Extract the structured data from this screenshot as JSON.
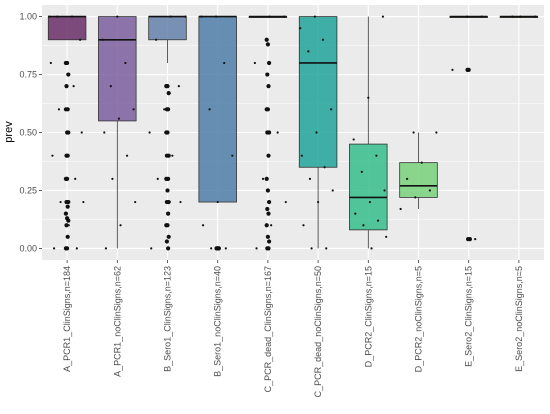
{
  "chart_data": {
    "type": "box",
    "title": "",
    "xlabel": "",
    "ylabel": "prev",
    "ylim": [
      -0.05,
      1.05
    ],
    "yticks": [
      "0.00",
      "0.25",
      "0.50",
      "0.75",
      "1.00"
    ],
    "yticks_values": [
      0,
      0.25,
      0.5,
      0.75,
      1
    ],
    "grid": true,
    "categories": [
      "A_PCR1_ClinSigns,n=184",
      "A_PCR1_noClinSigns,n=62",
      "B_Sero1_ClinSigns,n=123",
      "B_Sero1_noClinSigns,n=40",
      "C_PCR_dead_ClinSigns,n=167",
      "C_PCR_dead_noClinSigns,n=50",
      "D_PCR2_ClinSigns,n=15",
      "D_PCR2_noClinSigns,n=5",
      "E_Sero2_ClinSigns,n=15",
      "E_Sero2_noClinSigns,n=5"
    ],
    "boxes": [
      {
        "min": 0.9,
        "q1": 0.9,
        "median": 1.0,
        "q3": 1.0,
        "max": 1.0,
        "color": "#6a2f67",
        "outliers": [
          0.8,
          0.8,
          0.75,
          0.7,
          0.6,
          0.6,
          0.5,
          0.5,
          0.4,
          0.4,
          0.3,
          0.3,
          0.2,
          0.2,
          0.18,
          0.15,
          0.13,
          0.12,
          0.1,
          0.05,
          0.0,
          0.0
        ]
      },
      {
        "min": 0.0,
        "q1": 0.55,
        "median": 0.9,
        "q3": 1.0,
        "max": 1.0,
        "color": "#7b5fa0",
        "outliers": []
      },
      {
        "min": 0.8,
        "q1": 0.9,
        "median": 1.0,
        "q3": 1.0,
        "max": 1.0,
        "color": "#6580ab",
        "outliers": [
          0.7,
          0.7,
          0.67,
          0.6,
          0.6,
          0.5,
          0.5,
          0.4,
          0.4,
          0.3,
          0.3,
          0.25,
          0.2,
          0.2,
          0.15,
          0.1,
          0.1,
          0.05,
          0.03,
          0.0
        ]
      },
      {
        "min": 0.2,
        "q1": 0.2,
        "median": 1.0,
        "q3": 1.0,
        "max": 1.0,
        "color": "#4d7ea8",
        "outliers": [
          0.0,
          0.0,
          0.0,
          0.0,
          0.0
        ]
      },
      {
        "min": 1.0,
        "q1": 1.0,
        "median": 1.0,
        "q3": 1.0,
        "max": 1.0,
        "color": "#3b8f9b",
        "outliers": [
          0.9,
          0.88,
          0.8,
          0.75,
          0.7,
          0.6,
          0.6,
          0.5,
          0.5,
          0.4,
          0.3,
          0.25,
          0.2,
          0.17,
          0.15,
          0.1,
          0.05,
          0.03,
          0.0,
          0.0
        ]
      },
      {
        "min": 0.0,
        "q1": 0.35,
        "median": 0.8,
        "q3": 1.0,
        "max": 1.0,
        "color": "#21a39a",
        "outliers": []
      },
      {
        "min": 0.0,
        "q1": 0.08,
        "median": 0.22,
        "q3": 0.45,
        "max": 1.0,
        "color": "#36bd8c",
        "outliers": []
      },
      {
        "min": 0.17,
        "q1": 0.22,
        "median": 0.27,
        "q3": 0.37,
        "max": 0.5,
        "color": "#77d17a",
        "outliers": []
      },
      {
        "min": 1.0,
        "q1": 1.0,
        "median": 1.0,
        "q3": 1.0,
        "max": 1.0,
        "color": "#c4e05a",
        "outliers": [
          0.77,
          0.77,
          0.04,
          0.04
        ]
      },
      {
        "min": 1.0,
        "q1": 1.0,
        "median": 1.0,
        "q3": 1.0,
        "max": 1.0,
        "color": "#e8e43c",
        "outliers": []
      }
    ],
    "points": [
      [
        1.0,
        1.0,
        1.0,
        0.9,
        0.8,
        0.8,
        0.7,
        0.6,
        0.5,
        0.4,
        0.4,
        0.3,
        0.2,
        0.2,
        0.1,
        0.0,
        0.0
      ],
      [
        1.0,
        0.9,
        0.8,
        0.7,
        0.6,
        0.56,
        0.5,
        0.4,
        0.3,
        0.2,
        0.1,
        0.0
      ],
      [
        1.0,
        1.0,
        0.9,
        0.7,
        0.6,
        0.5,
        0.4,
        0.3,
        0.2,
        0.1,
        0.0
      ],
      [
        1.0,
        1.0,
        0.8,
        0.6,
        0.4,
        0.2,
        0.1,
        0.0,
        0.0
      ],
      [
        1.0,
        1.0,
        0.8,
        0.5,
        0.3,
        0.2,
        0.1,
        0.0
      ],
      [
        1.0,
        0.95,
        0.9,
        0.85,
        0.6,
        0.5,
        0.4,
        0.35,
        0.3,
        0.25,
        0.2,
        0.1,
        0.0,
        0.0
      ],
      [
        1.0,
        0.65,
        0.47,
        0.4,
        0.33,
        0.25,
        0.2,
        0.15,
        0.12,
        0.1,
        0.05,
        0.0
      ],
      [
        0.5,
        0.5,
        0.37,
        0.3,
        0.25,
        0.22,
        0.17
      ],
      [
        1.0,
        1.0,
        0.77,
        0.04
      ],
      [
        1.0,
        1.0,
        1.0
      ]
    ],
    "colors": {
      "panel": "#ebebeb",
      "grid": "#ffffff",
      "whisker": "#333333",
      "point": "#111111"
    }
  }
}
